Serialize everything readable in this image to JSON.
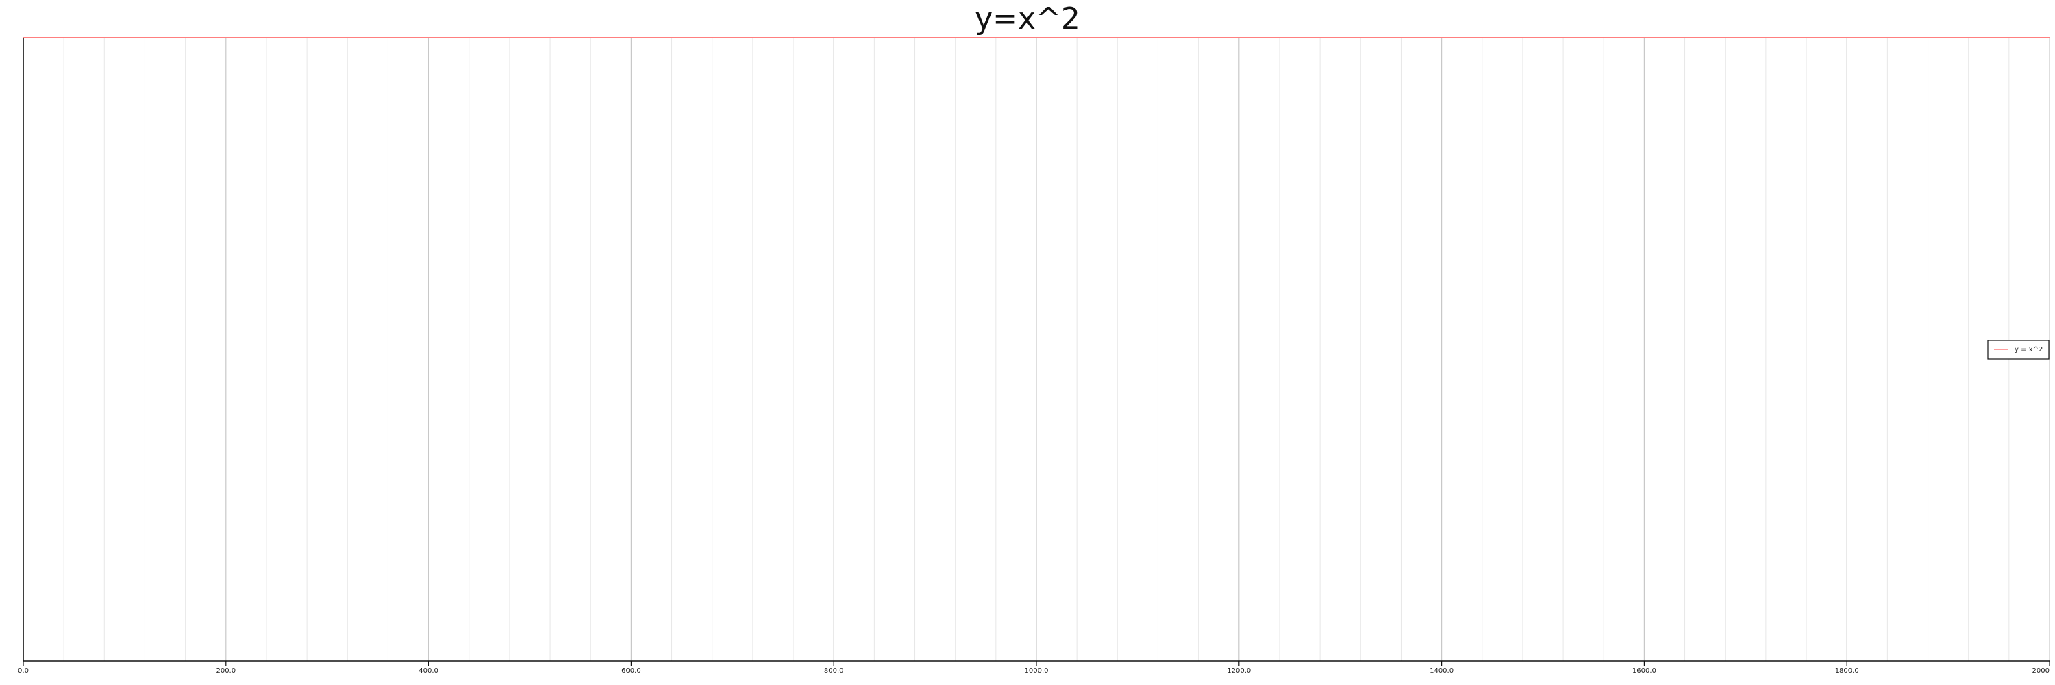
{
  "chart_data": {
    "type": "line",
    "title": "y=x^2",
    "xlabel": "",
    "ylabel": "",
    "xlim": [
      0,
      2000
    ],
    "x_ticks": [
      0,
      200,
      400,
      600,
      800,
      1000,
      1200,
      1400,
      1600,
      1800,
      2000
    ],
    "x_tick_labels": [
      "0.0",
      "200.0",
      "400.0",
      "600.0",
      "800.0",
      "1000.0",
      "1200.0",
      "1400.0",
      "1600.0",
      "1800.0",
      "2000"
    ],
    "grid": true,
    "legend_position": "right",
    "series": [
      {
        "name": "y = x^2",
        "color": "#ff7f7f",
        "x": [
          0,
          2000
        ],
        "y_relative": [
          1,
          1
        ]
      }
    ]
  }
}
